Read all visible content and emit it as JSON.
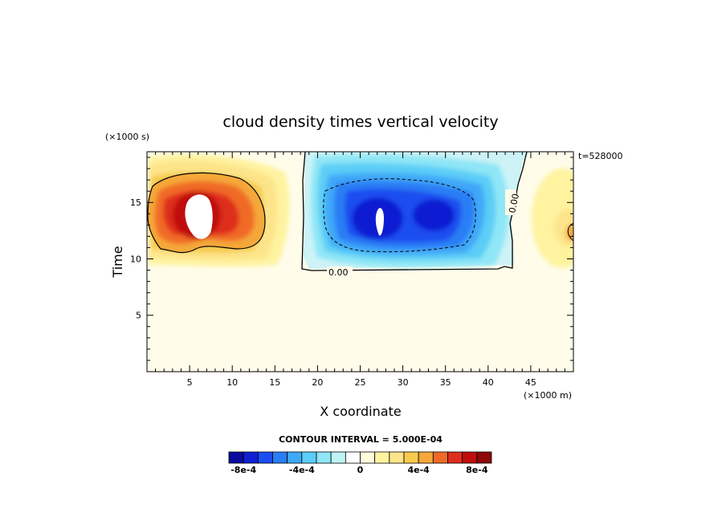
{
  "chart_data": {
    "type": "heatmap",
    "title": "cloud density times vertical velocity",
    "xlabel": "X coordinate",
    "ylabel": "Time",
    "x_unit": "(×1000 m)",
    "y_unit": "(×1000 s)",
    "timestamp": "t=528000",
    "contour_interval": "CONTOUR INTERVAL = 5.000E-04",
    "xlim": [
      0,
      50
    ],
    "ylim": [
      0,
      19.5
    ],
    "x_ticks": [
      5,
      10,
      15,
      20,
      25,
      30,
      35,
      40,
      45
    ],
    "y_ticks": [
      5,
      10,
      15
    ],
    "zero_contour_labels": [
      "0.00",
      "0.00"
    ],
    "features": [
      {
        "name": "positive core",
        "x": 5.8,
        "y": 14.2,
        "peak": 0.0011
      },
      {
        "name": "negative core",
        "x": 27.5,
        "y": 13.5,
        "peak": -0.0011
      },
      {
        "name": "positive edge",
        "x": 50,
        "y": 13,
        "peak": 0.0005
      }
    ],
    "colorbar": {
      "colors": [
        "#0a0a9e",
        "#0f1fd2",
        "#1a4ef0",
        "#2a7ef5",
        "#3fa8f8",
        "#5ccdf7",
        "#8ee6f6",
        "#bff3f6",
        "#ffffff",
        "#fffbdc",
        "#fff3a0",
        "#fde48a",
        "#f7cb4e",
        "#f5a83a",
        "#f06a26",
        "#de2d1d",
        "#bf0d0d",
        "#8e0808"
      ],
      "tick_labels": [
        "-8e-4",
        "-4e-4",
        "0",
        "4e-4",
        "8e-4"
      ]
    }
  }
}
